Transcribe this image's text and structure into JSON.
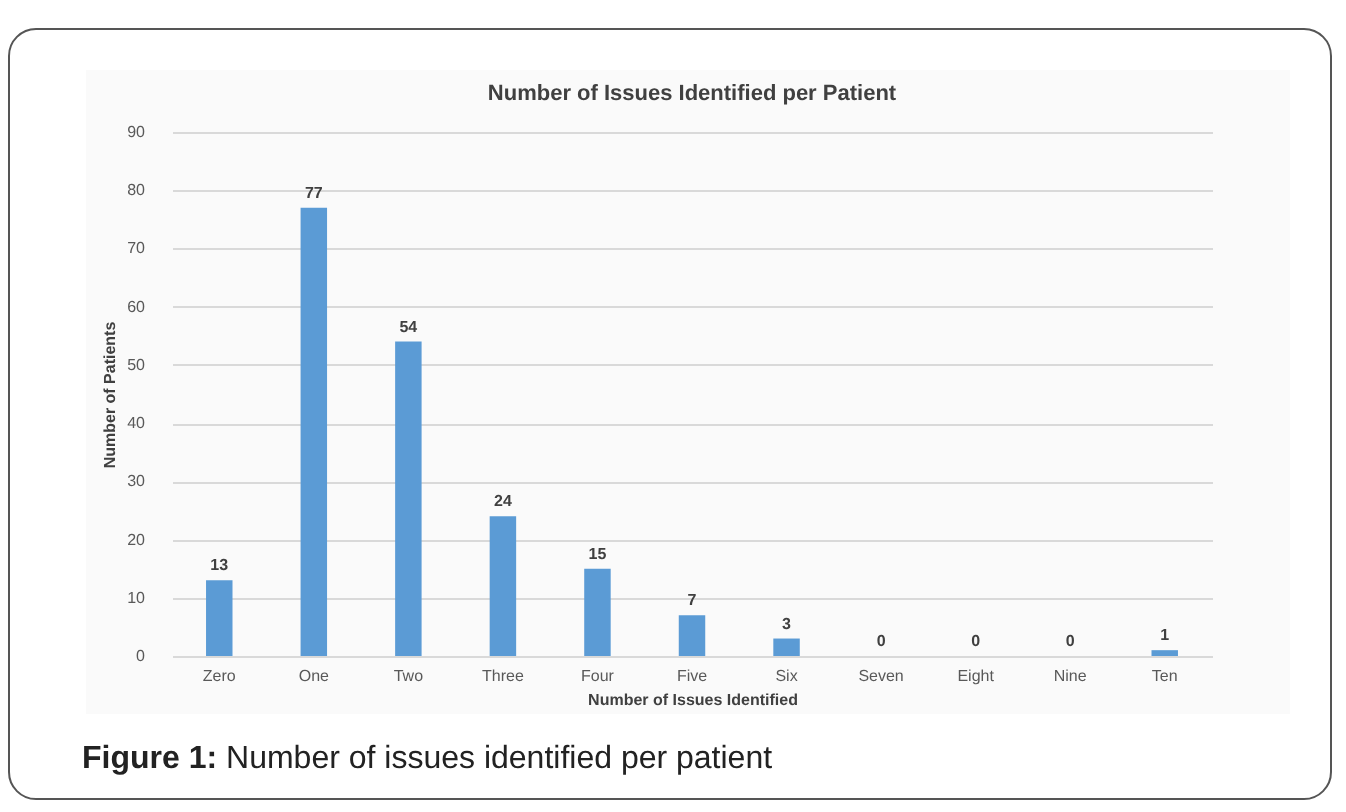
{
  "chart_data": {
    "type": "bar",
    "title": "Number of Issues Identified per Patient",
    "xlabel": "Number of Issues Identified",
    "ylabel": "Number of Patients",
    "categories": [
      "Zero",
      "One",
      "Two",
      "Three",
      "Four",
      "Five",
      "Six",
      "Seven",
      "Eight",
      "Nine",
      "Ten"
    ],
    "values": [
      13,
      77,
      54,
      24,
      15,
      7,
      3,
      0,
      0,
      0,
      1
    ],
    "color": "#5b9bd5",
    "ylim": [
      0,
      90
    ],
    "yticks": [
      0,
      10,
      20,
      30,
      40,
      50,
      60,
      70,
      80,
      90
    ],
    "grid": "y",
    "data_labels": true,
    "annotations": [
      "Figure 1: Number of issues identified per patient"
    ]
  }
}
